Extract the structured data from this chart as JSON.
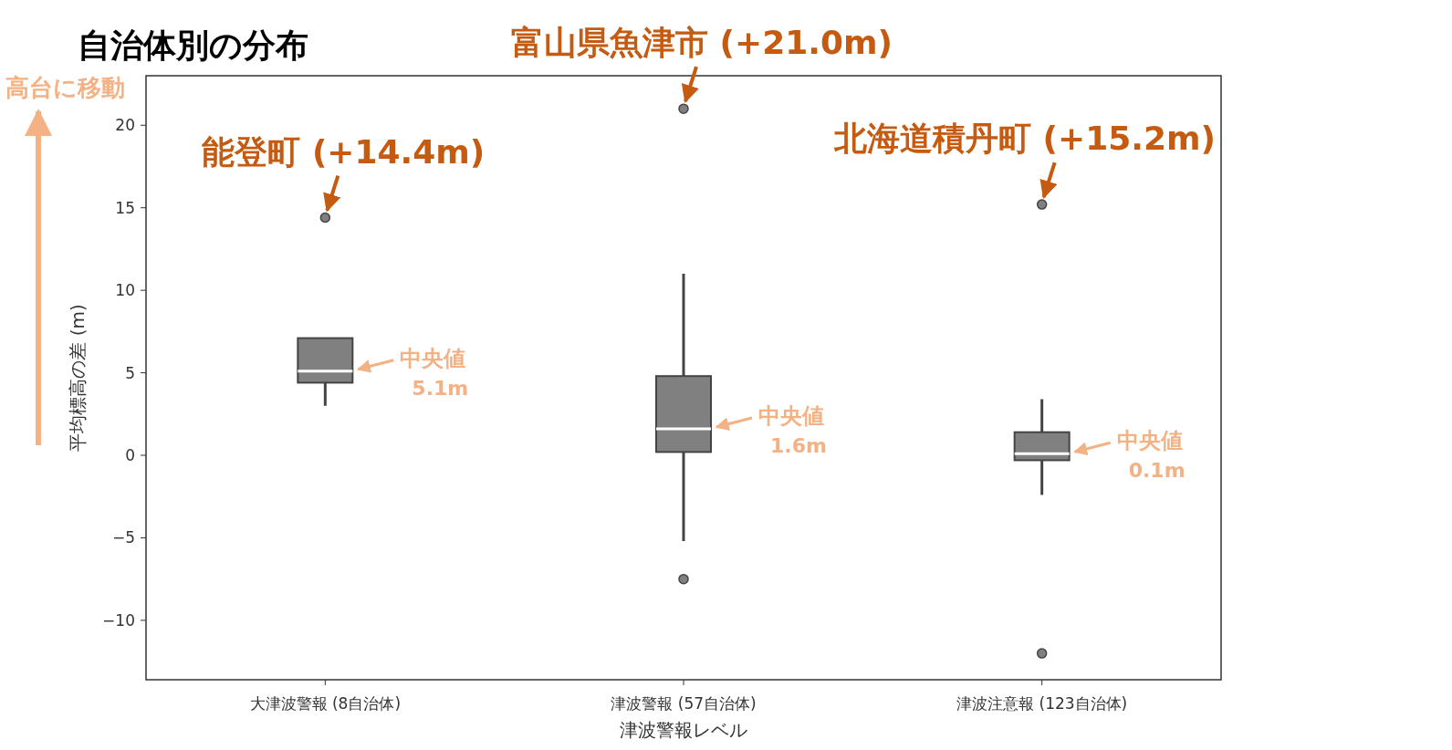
{
  "chart_data": {
    "type": "box",
    "title": "自治体別の分布",
    "xlabel": "津波警報レベル",
    "ylabel": "平均標高の差 (m)",
    "categories": [
      "大津波警報 (8自治体)",
      "津波警報 (57自治体)",
      "津波注意報 (123自治体)"
    ],
    "color": "#808080",
    "boxes": [
      {
        "low": 3.0,
        "q1": 4.4,
        "median": 5.1,
        "q3": 7.1,
        "high": 7.1,
        "outliers": [
          14.4
        ]
      },
      {
        "low": -5.2,
        "q1": 0.2,
        "median": 1.6,
        "q3": 4.8,
        "high": 11.0,
        "outliers": [
          21.0,
          -7.5
        ]
      },
      {
        "low": -2.4,
        "q1": -0.3,
        "median": 0.1,
        "q3": 1.4,
        "high": 3.4,
        "outliers": [
          15.2,
          -12.0
        ]
      }
    ],
    "ylim": [
      -13.6,
      23
    ],
    "yticks": [
      -10,
      -5,
      0,
      5,
      10,
      15,
      20
    ],
    "grid": false,
    "annotations": [
      "高台に移動",
      "能登町 (+14.4m)",
      "富山県魚津市 (+21.0m)",
      "北海道積丹町 (+15.2m)",
      "中央値 5.1m",
      "中央値 1.6m",
      "中央値 0.1m"
    ]
  }
}
